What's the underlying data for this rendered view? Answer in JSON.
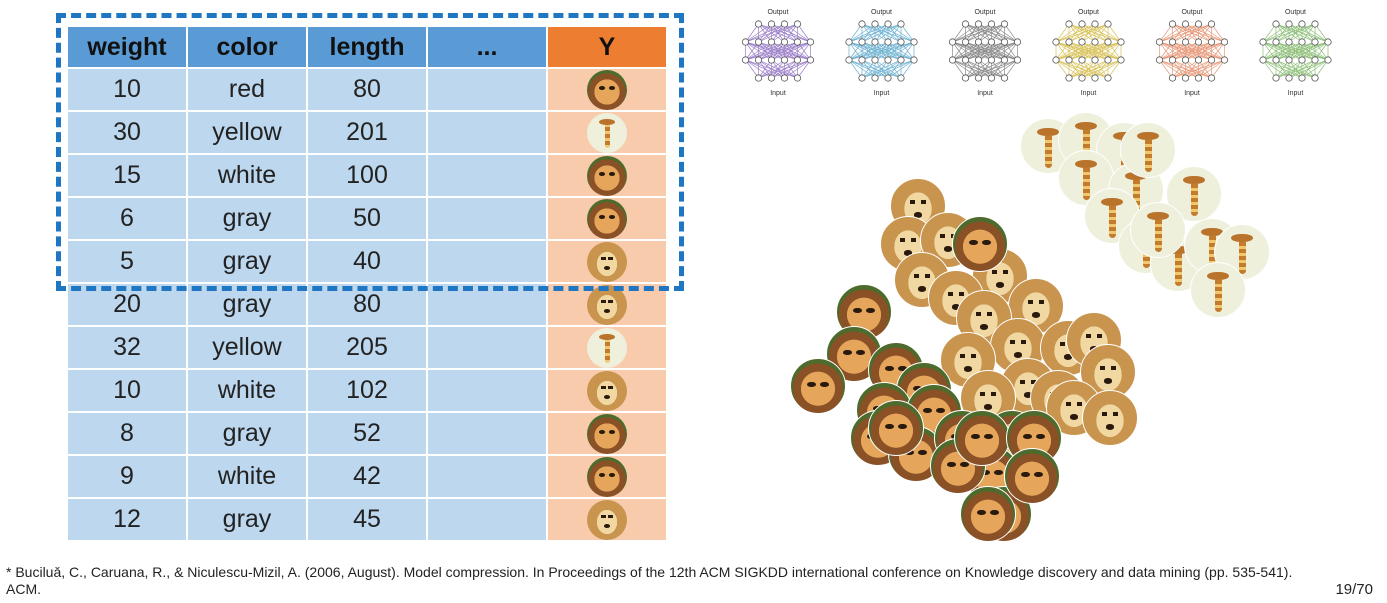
{
  "table": {
    "columns": [
      "weight",
      "color",
      "length",
      "...",
      "Y"
    ],
    "rows": [
      {
        "weight": "10",
        "color": "red",
        "length": "80",
        "label": "cat"
      },
      {
        "weight": "30",
        "color": "yellow",
        "length": "201",
        "label": "giraffe"
      },
      {
        "weight": "15",
        "color": "white",
        "length": "100",
        "label": "cat"
      },
      {
        "weight": "6",
        "color": "gray",
        "length": "50",
        "label": "cat"
      },
      {
        "weight": "5",
        "color": "gray",
        "length": "40",
        "label": "dog"
      },
      {
        "weight": "20",
        "color": "gray",
        "length": "80",
        "label": "dog"
      },
      {
        "weight": "32",
        "color": "yellow",
        "length": "205",
        "label": "giraffe"
      },
      {
        "weight": "10",
        "color": "white",
        "length": "102",
        "label": "dog"
      },
      {
        "weight": "8",
        "color": "gray",
        "length": "52",
        "label": "cat"
      },
      {
        "weight": "9",
        "color": "white",
        "length": "42",
        "label": "cat"
      },
      {
        "weight": "12",
        "color": "gray",
        "length": "45",
        "label": "dog"
      }
    ],
    "highlighted_rows": 5
  },
  "networks": {
    "count": 6,
    "top_label": "Output",
    "bottom_label": "Input",
    "colors": [
      "#9b7fc9",
      "#6fb3d2",
      "#8c8c8c",
      "#d9c35a",
      "#e79a7a",
      "#8fc07a"
    ]
  },
  "cluster_icons": {
    "giraffe_count": 14,
    "dog_count": 18,
    "cat_count": 21
  },
  "footnote": "* Buciluǎ, C., Caruana, R., & Niculescu-Mizil, A. (2006, August). Model compression. In Proceedings of the 12th ACM SIGKDD international conference on Knowledge discovery and data mining (pp. 535-541). ACM.",
  "page_number": "19/70"
}
